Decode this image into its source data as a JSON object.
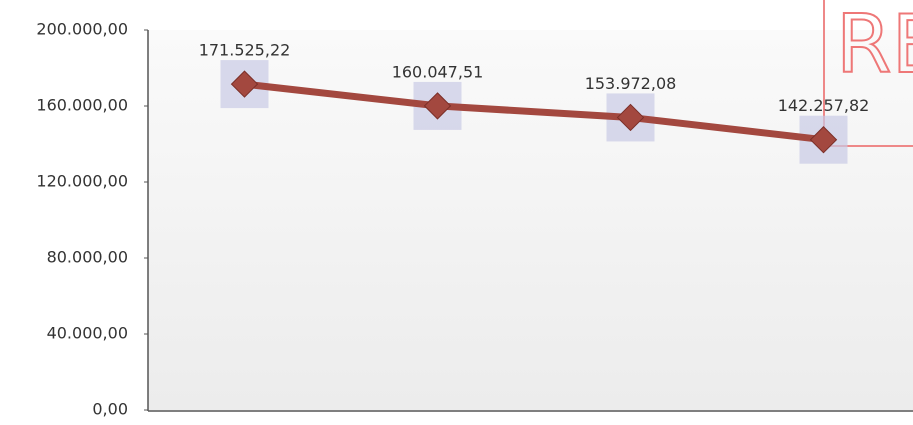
{
  "chart_data": {
    "type": "line",
    "categories": [
      null,
      null,
      null,
      null
    ],
    "series": [
      {
        "name": null,
        "color": "#a3483f",
        "values": [
          171525.22,
          160047.51,
          153972.08,
          142257.82
        ],
        "value_labels": [
          "171.525,22",
          "160.047,51",
          "153.972,08",
          "142.257,82"
        ]
      }
    ],
    "ylim": [
      0,
      200000
    ],
    "yticks": [
      {
        "value": 0,
        "label": "0,00"
      },
      {
        "value": 40000,
        "label": "40.000,00"
      },
      {
        "value": 80000,
        "label": "80.000,00"
      },
      {
        "value": 120000,
        "label": "120.000,00"
      },
      {
        "value": 160000,
        "label": "160.000,00"
      },
      {
        "value": 200000,
        "label": "200.000,00"
      }
    ],
    "grid": false,
    "stamp": "RE"
  }
}
